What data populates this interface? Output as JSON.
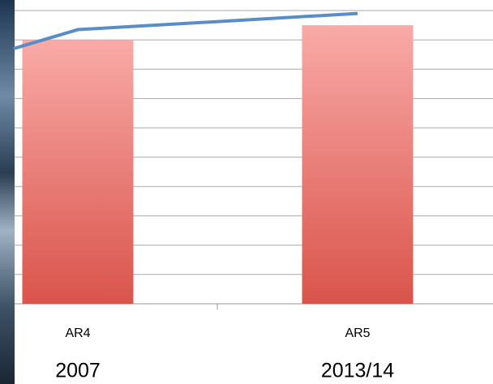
{
  "chart_data": {
    "type": "bar",
    "categories": [
      "AR4",
      "AR5"
    ],
    "category_years": [
      "2007",
      "2013/14"
    ],
    "values": [
      9,
      9.5
    ],
    "color_top": "#f9aaa7",
    "color_bottom": "#d9544b",
    "line": {
      "x": [
        -0.23,
        0,
        1
      ],
      "values": [
        8.7,
        9.35,
        9.9
      ],
      "color": "#5a8dc5"
    },
    "ylim": [
      0,
      10.36
    ],
    "yticks": [
      0,
      1,
      2,
      3,
      4,
      5,
      6,
      7,
      8,
      9,
      10
    ],
    "grid": true
  }
}
